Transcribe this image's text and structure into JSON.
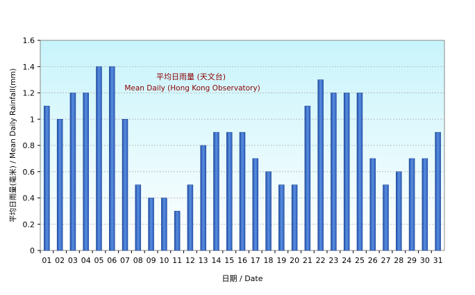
{
  "chart_data": {
    "type": "bar",
    "title_zh": "平均日雨量 (天文台)",
    "title_en": "Mean Daily (Hong Kong Observatory)",
    "xlabel": "日期 / Date",
    "ylabel": "平均日雨量(毫米) / Mean Daily Rainfall(mm)",
    "ylim": [
      0,
      1.6
    ],
    "yticks": [
      "0",
      "0.2",
      "0.4",
      "0.6",
      "0.8",
      "1",
      "1.2",
      "1.4",
      "1.6"
    ],
    "grid": true,
    "categories": [
      "01",
      "02",
      "03",
      "04",
      "05",
      "06",
      "07",
      "08",
      "09",
      "10",
      "11",
      "12",
      "13",
      "14",
      "15",
      "16",
      "17",
      "18",
      "19",
      "20",
      "21",
      "22",
      "23",
      "24",
      "25",
      "26",
      "27",
      "28",
      "29",
      "30",
      "31"
    ],
    "values": [
      1.1,
      1.0,
      1.2,
      1.2,
      1.4,
      1.4,
      1.0,
      0.5,
      0.4,
      0.4,
      0.3,
      0.5,
      0.8,
      0.9,
      0.9,
      0.9,
      0.7,
      0.6,
      0.5,
      0.5,
      1.1,
      1.3,
      1.2,
      1.2,
      1.2,
      0.7,
      0.5,
      0.6,
      0.7,
      0.7,
      0.9
    ],
    "colors": {
      "bar": "#3a6fc4",
      "background_top": "#c8f4fb",
      "background_bottom": "#ffffff",
      "title": "#8b0000"
    }
  }
}
